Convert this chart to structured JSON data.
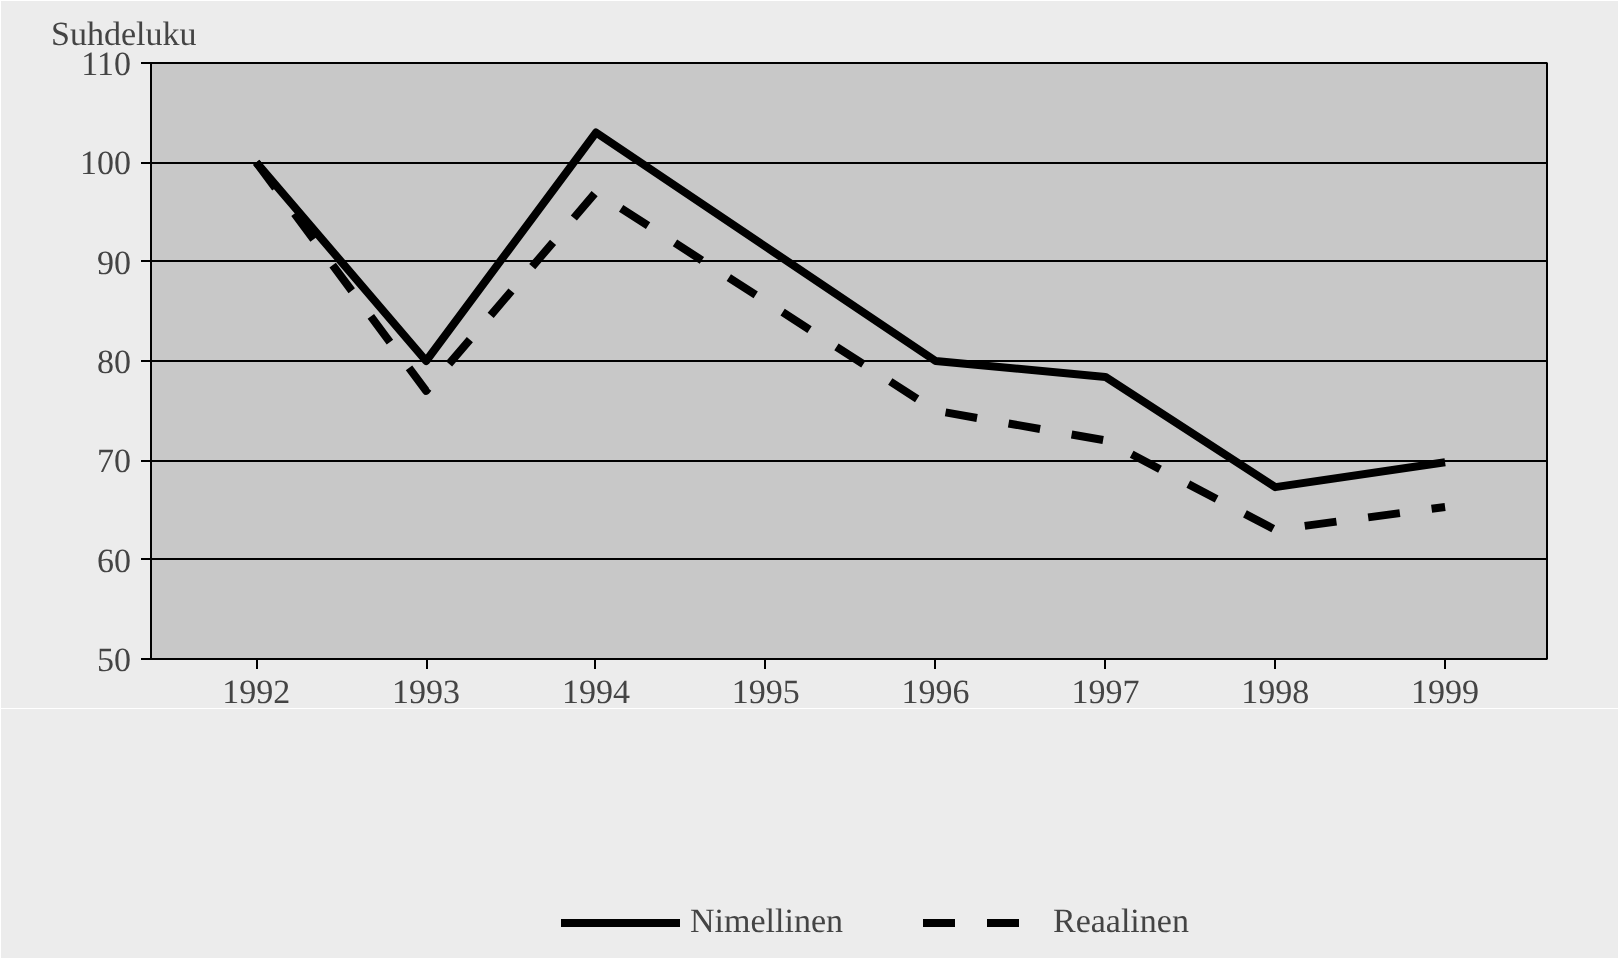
{
  "chart_data": {
    "type": "line",
    "ylabel": "Suhdeluku",
    "categories": [
      "1992",
      "1993",
      "1994",
      "1995",
      "1996",
      "1997",
      "1998",
      "1999"
    ],
    "series": [
      {
        "name": "Nimellinen",
        "color": "#000000",
        "line_style": "solid",
        "values": [
          100,
          80,
          103,
          91.5,
          80,
          78.4,
          67.3,
          69.8
        ]
      },
      {
        "name": "Reaalinen",
        "color": "#000000",
        "line_style": "dashed",
        "values": [
          100,
          77,
          97,
          86,
          75,
          72,
          63,
          65.3
        ]
      }
    ],
    "ylim": [
      50,
      110
    ],
    "yticks": [
      50,
      60,
      70,
      80,
      90,
      100,
      110
    ],
    "grid": "y",
    "legend": "bottom",
    "marker": "none"
  }
}
